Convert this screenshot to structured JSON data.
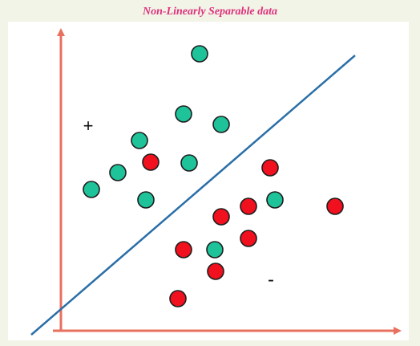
{
  "title": "Non-Linearly Separable data",
  "labels": {
    "positive": "+",
    "negative": "-"
  },
  "colors": {
    "background": "#f1f4e6",
    "axis": "#e8705f",
    "separator": "#2a6fa8",
    "class_plus": "#1ec39a",
    "class_minus": "#f0101e",
    "title": "#e0317e"
  },
  "points_plus": [
    [
      249,
      67
    ],
    [
      229,
      142
    ],
    [
      276,
      155
    ],
    [
      174,
      175
    ],
    [
      147,
      215
    ],
    [
      236,
      203
    ],
    [
      114,
      236
    ],
    [
      182,
      249
    ],
    [
      343,
      249
    ],
    [
      268,
      311
    ]
  ],
  "points_minus": [
    [
      188,
      202
    ],
    [
      337,
      209
    ],
    [
      310,
      257
    ],
    [
      276,
      270
    ],
    [
      418,
      257
    ],
    [
      229,
      311
    ],
    [
      310,
      297
    ],
    [
      269,
      338
    ],
    [
      222,
      372
    ]
  ]
}
